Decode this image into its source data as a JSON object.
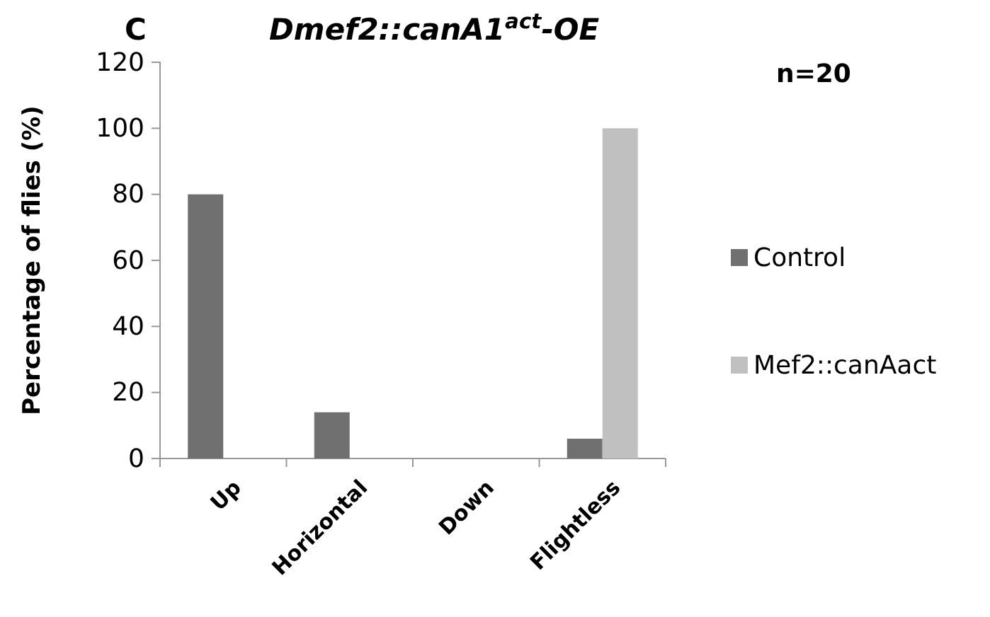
{
  "chart_data": {
    "type": "bar",
    "title": "Dmef2::canA1$^{act}$-OE",
    "ylabel": "Percentage of flies (%)",
    "annotations": [
      "C",
      "n=20"
    ],
    "categories": [
      "Up",
      "Horizontal",
      "Down",
      "Flightless"
    ],
    "series": [
      {
        "name": "Control",
        "color": "#707070",
        "values": [
          80,
          14,
          0,
          6
        ]
      },
      {
        "name": "Mef2::canAact",
        "color": "#c0c0c0",
        "values": [
          0,
          0,
          0,
          100
        ]
      }
    ],
    "ylim": [
      0,
      120
    ],
    "yticks": [
      0,
      20,
      40,
      60,
      80,
      100,
      120
    ],
    "grid": false,
    "legend": "right"
  }
}
